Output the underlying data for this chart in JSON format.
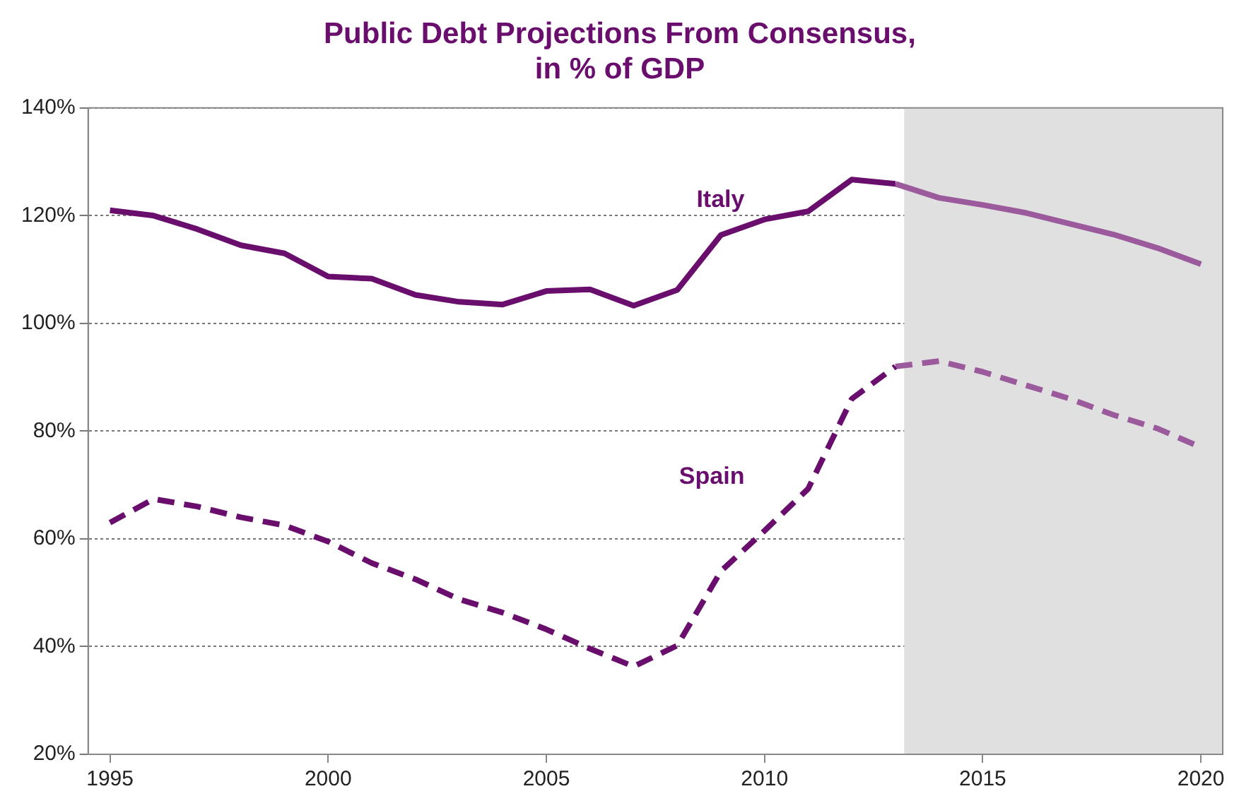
{
  "chart_data": {
    "type": "line",
    "title": "Public Debt Projections From Consensus,\nin % of GDP",
    "series": [
      {
        "name": "Italy",
        "color": "#6a0e6e",
        "line_style": "solid",
        "x": [
          1995,
          1996,
          1997,
          1998,
          1999,
          2000,
          2001,
          2002,
          2003,
          2004,
          2005,
          2006,
          2007,
          2008,
          2009,
          2010,
          2011,
          2012,
          2013
        ],
        "values": [
          121,
          120,
          117.5,
          114.5,
          113,
          108.7,
          108.3,
          105.3,
          104,
          103.5,
          106,
          106.3,
          103.3,
          106.2,
          116.4,
          119.3,
          120.8,
          126.7,
          125.9
        ]
      },
      {
        "color": "#9a5a9c",
        "line_style": "solid",
        "x": [
          2013,
          2014,
          2015,
          2016,
          2017,
          2018,
          2019,
          2020
        ],
        "values": [
          125.9,
          123.3,
          122,
          120.5,
          118.5,
          116.5,
          114,
          111
        ]
      },
      {
        "name": "Spain",
        "color": "#6a0e6e",
        "line_style": "dashed",
        "x": [
          1995,
          1996,
          1997,
          1998,
          1999,
          2000,
          2001,
          2002,
          2003,
          2004,
          2005,
          2006,
          2007,
          2008,
          2009,
          2010,
          2011,
          2012,
          2013
        ],
        "values": [
          63,
          67.4,
          66,
          64,
          62.5,
          59.5,
          55.5,
          52.5,
          48.8,
          46.3,
          43.2,
          39.6,
          36.3,
          40.2,
          54,
          61.5,
          69.3,
          86,
          92
        ]
      },
      {
        "color": "#9a5a9c",
        "line_style": "dashed",
        "x": [
          2013,
          2014,
          2015,
          2016,
          2017,
          2018,
          2019,
          2020
        ],
        "values": [
          92,
          93,
          91,
          88.5,
          86,
          83,
          80.5,
          77
        ]
      }
    ],
    "bands": [
      {
        "axis": "x",
        "from": 2013.2,
        "to": 2020.5,
        "color": "#e0e0e0"
      }
    ],
    "xlim": [
      1994.5,
      2020.5
    ],
    "xticks": [
      1995,
      2000,
      2005,
      2010,
      2015,
      2020
    ],
    "ylim": [
      20,
      140
    ],
    "yticks": [
      {
        "value": 20,
        "label": "20%"
      },
      {
        "value": 40,
        "label": "40%"
      },
      {
        "value": 60,
        "label": "60%"
      },
      {
        "value": 80,
        "label": "80%"
      },
      {
        "value": 100,
        "label": "100%"
      },
      {
        "value": 120,
        "label": "120%"
      },
      {
        "value": 140,
        "label": "140%"
      }
    ],
    "grid": "y",
    "marker": "none",
    "legend": false
  }
}
